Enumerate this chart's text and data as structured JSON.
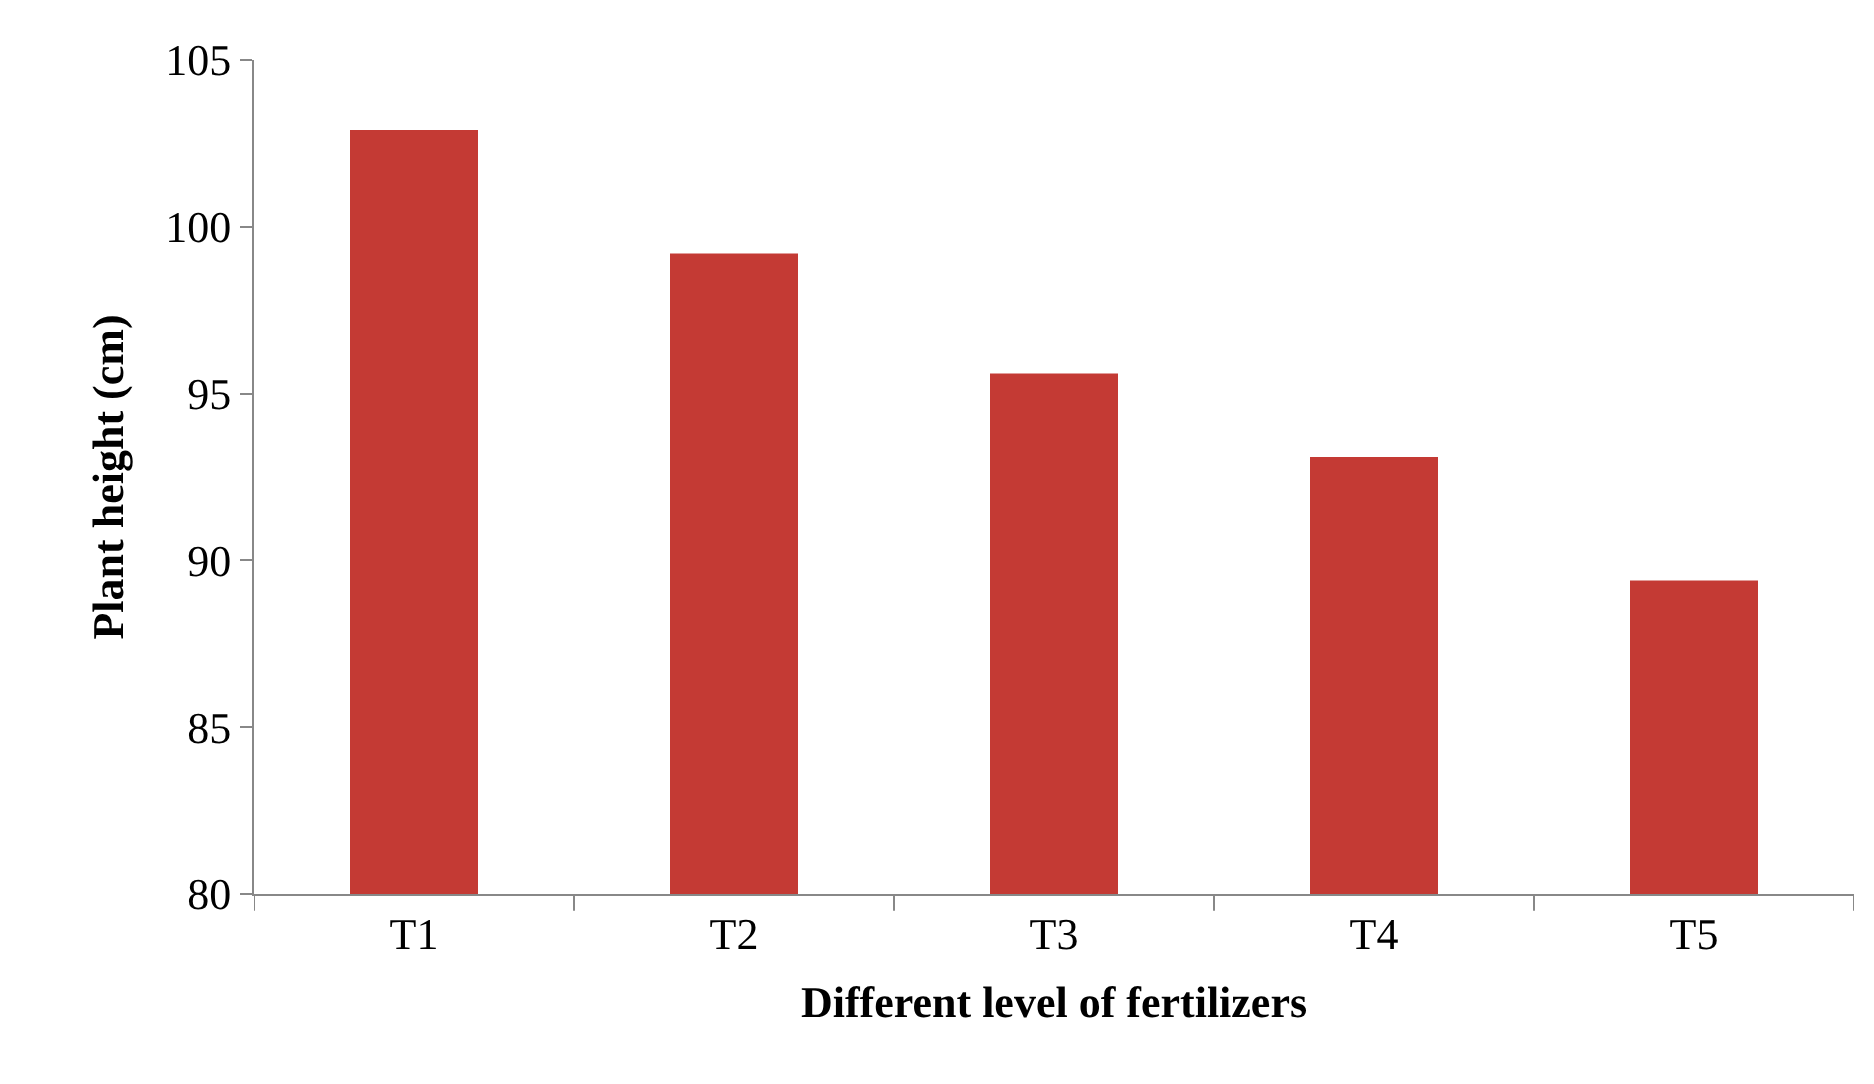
{
  "chart_data": {
    "type": "bar",
    "xlabel": "Different level of fertilizers",
    "ylabel": "Plant height (cm)",
    "categories": [
      "T1",
      "T2",
      "T3",
      "T4",
      "T5"
    ],
    "values": [
      102.9,
      99.2,
      95.6,
      93.1,
      89.4
    ],
    "color": "#c43a34",
    "ylim": [
      80,
      105
    ],
    "yticks": [
      80,
      85,
      90,
      95,
      100,
      105
    ],
    "grid": false,
    "legend": false
  }
}
